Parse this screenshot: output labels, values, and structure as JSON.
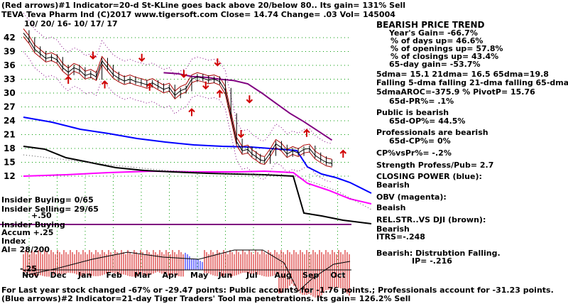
{
  "header": {
    "line1": "(Red arrows)#1 Indicator=20-d St-KLine goes back above 20/below 80..  Its gain= 131% Sell",
    "line2": "TEVA   Teva Pharm Ind  (C)2017 www.tigersoft.com     Close=  14.74   Change= .03 Vol= 145004",
    "daterange": "10/ 20/ 16- 10/ 17/ 17"
  },
  "footer": {
    "line1": "For Last year stock changed -67% or -29.47 points:  Public accounts for  -1.76 points.;  Professionals account for -31.23 points.",
    "line2": "(Blue arrows)#2 Indicator=21-day Tiger Traders' Tool ma penetrations.  Its gain= 126.2% Sell"
  },
  "left_labels": {
    "insider_buying": "Insider Buying= 0/65",
    "insider_selling": "Insider Selling= 29/65",
    "p50": "+.50",
    "insider_accum_1": "Insider Buying",
    "insider_accum_2": "Accum   +.25",
    "insider_accum_3": "Index",
    "ai": "AI= 28/200",
    "m25": "-.25"
  },
  "right_panel": {
    "title": "BEARISH PRICE TREND",
    "lines": [
      "Year's Gain= -66.7%",
      "% of days up= 46.6%",
      "% of openings up= 57.8%",
      "% of closings up= 43.4%",
      "65-day gain= -53.7%",
      "5dma= 15.1  21dma= 16.5  65dma=19.8",
      "Falling 5-dma  falling 21-dma  falling 65-dma",
      "5dmaAROC=-375.9 %  PivotP= 15.76",
      "65d-PR%= .1%",
      "Public is bearish",
      "65d-OP%= 44.5%",
      "Professionals are bearish",
      "65d-CP%= 0%",
      "CP%vsPr%= -.2%",
      "Strength Profess/Pub= 2.7",
      "CLOSING POWER (blue):",
      "Bearish",
      "OBV (magenta):",
      "Beaish",
      "REL.STR..VS DJI (brown):",
      "Bearish",
      "ITRS=-.248",
      "Bearish:  Distrubtion Falling.",
      "IP= -.216"
    ]
  },
  "chart_data": {
    "type": "line",
    "title": "TEVA Teva Pharm Ind",
    "x_labels": [
      "Nov",
      "Dec",
      "Jan",
      "Feb",
      "Mar",
      "Apr",
      "May",
      "Jun",
      "Jul",
      "Aug",
      "Sep",
      "Oct"
    ],
    "y_ticks": [
      42,
      39,
      36,
      33,
      30,
      27,
      24,
      21,
      18,
      15,
      12
    ],
    "ylim": [
      10.5,
      44
    ],
    "grid": true,
    "series": [
      {
        "name": "Close",
        "color": "#000000",
        "x": [
          0,
          0.2,
          0.4,
          0.6,
          0.8,
          1.0,
          1.2,
          1.4,
          1.6,
          1.8,
          2.0,
          2.2,
          2.4,
          2.6,
          2.8,
          3.0,
          3.2,
          3.4,
          3.6,
          3.8,
          4.0,
          4.2,
          4.4,
          4.6,
          4.8,
          5.0,
          5.2,
          5.4,
          5.6,
          5.8,
          6.0,
          6.2,
          6.4,
          6.6,
          6.8,
          7.0,
          7.2,
          7.4,
          7.6,
          7.8,
          8.0,
          8.15,
          8.3,
          8.45,
          8.6,
          8.8,
          9.0,
          9.2,
          9.4,
          9.6,
          9.8,
          10.0,
          10.2,
          10.4,
          10.6,
          10.8,
          11.0
        ],
        "y": [
          43,
          41.5,
          39.5,
          38.5,
          37.5,
          37.8,
          37.2,
          35.5,
          34.5,
          35.5,
          35.0,
          33.8,
          34.2,
          33.5,
          37.0,
          35.5,
          34.0,
          33.2,
          32.6,
          33.0,
          32.5,
          32.2,
          31.8,
          32.2,
          31.5,
          30.8,
          31.2,
          29.5,
          30.5,
          31.0,
          33.0,
          33.5,
          33.2,
          32.8,
          33.0,
          32.5,
          30.5,
          25.0,
          19.5,
          17.5,
          17.8,
          16.8,
          16.2,
          15.5,
          15.3,
          17.0,
          19.0,
          18.2,
          16.8,
          17.5,
          17.0,
          17.8,
          18.0,
          16.5,
          15.7,
          15.0,
          14.74
        ]
      },
      {
        "name": "65dma",
        "color": "#800080",
        "x": [
          5.0,
          5.5,
          6.0,
          6.5,
          7.0,
          7.5,
          8.0,
          8.5,
          9.0,
          9.5,
          10.0,
          10.5,
          11.0
        ],
        "y": [
          34.4,
          34.2,
          33.6,
          33.4,
          33.0,
          32.7,
          32.0,
          30.0,
          27.8,
          25.6,
          23.8,
          21.8,
          19.8
        ]
      }
    ]
  }
}
